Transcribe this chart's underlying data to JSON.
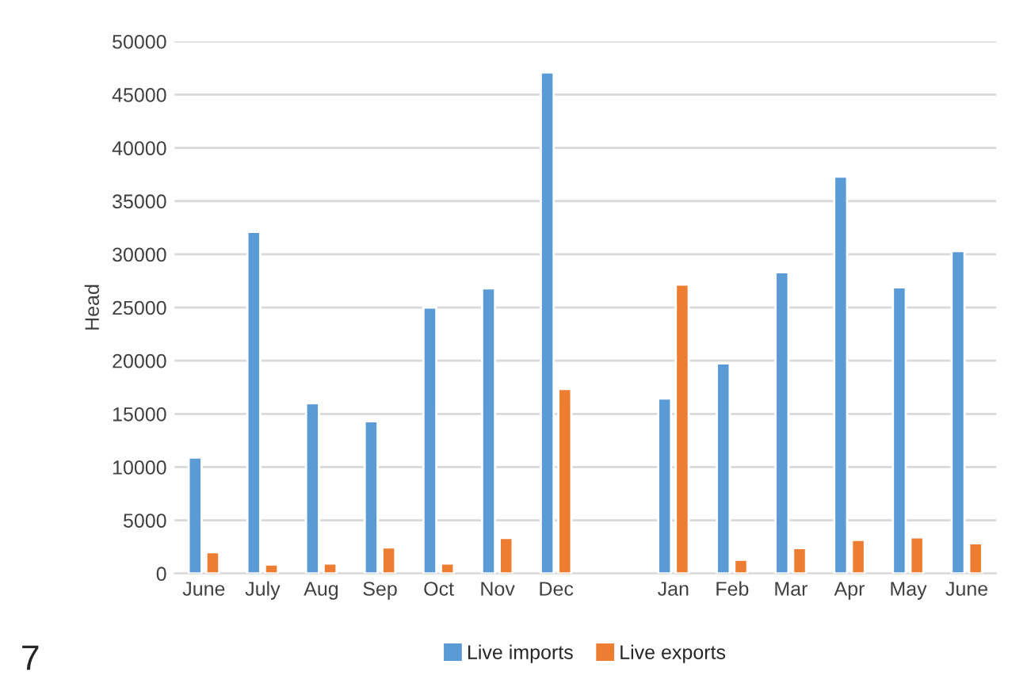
{
  "chart_data": {
    "type": "bar",
    "ylabel": "Head",
    "categories": [
      "June",
      "July",
      "Aug",
      "Sep",
      "Oct",
      "Nov",
      "Dec",
      null,
      "Jan",
      "Feb",
      "Mar",
      "Apr",
      "May",
      "June"
    ],
    "series": [
      {
        "name": "Live imports",
        "color": "#5b9bd5",
        "values": [
          10900,
          32100,
          16000,
          14300,
          25000,
          26800,
          47100,
          null,
          16450,
          19750,
          28300,
          37300,
          26900,
          30300
        ]
      },
      {
        "name": "Live exports",
        "color": "#ed7d31",
        "values": [
          2000,
          850,
          950,
          2450,
          950,
          3350,
          17350,
          null,
          27150,
          1300,
          2400,
          3150,
          3400,
          2850
        ]
      }
    ],
    "ylim": [
      0,
      50000
    ],
    "yticks": [
      0,
      5000,
      10000,
      15000,
      20000,
      25000,
      30000,
      35000,
      40000,
      45000,
      50000
    ],
    "grid": "y",
    "legend": "bottom",
    "annotations": [
      "7"
    ]
  }
}
